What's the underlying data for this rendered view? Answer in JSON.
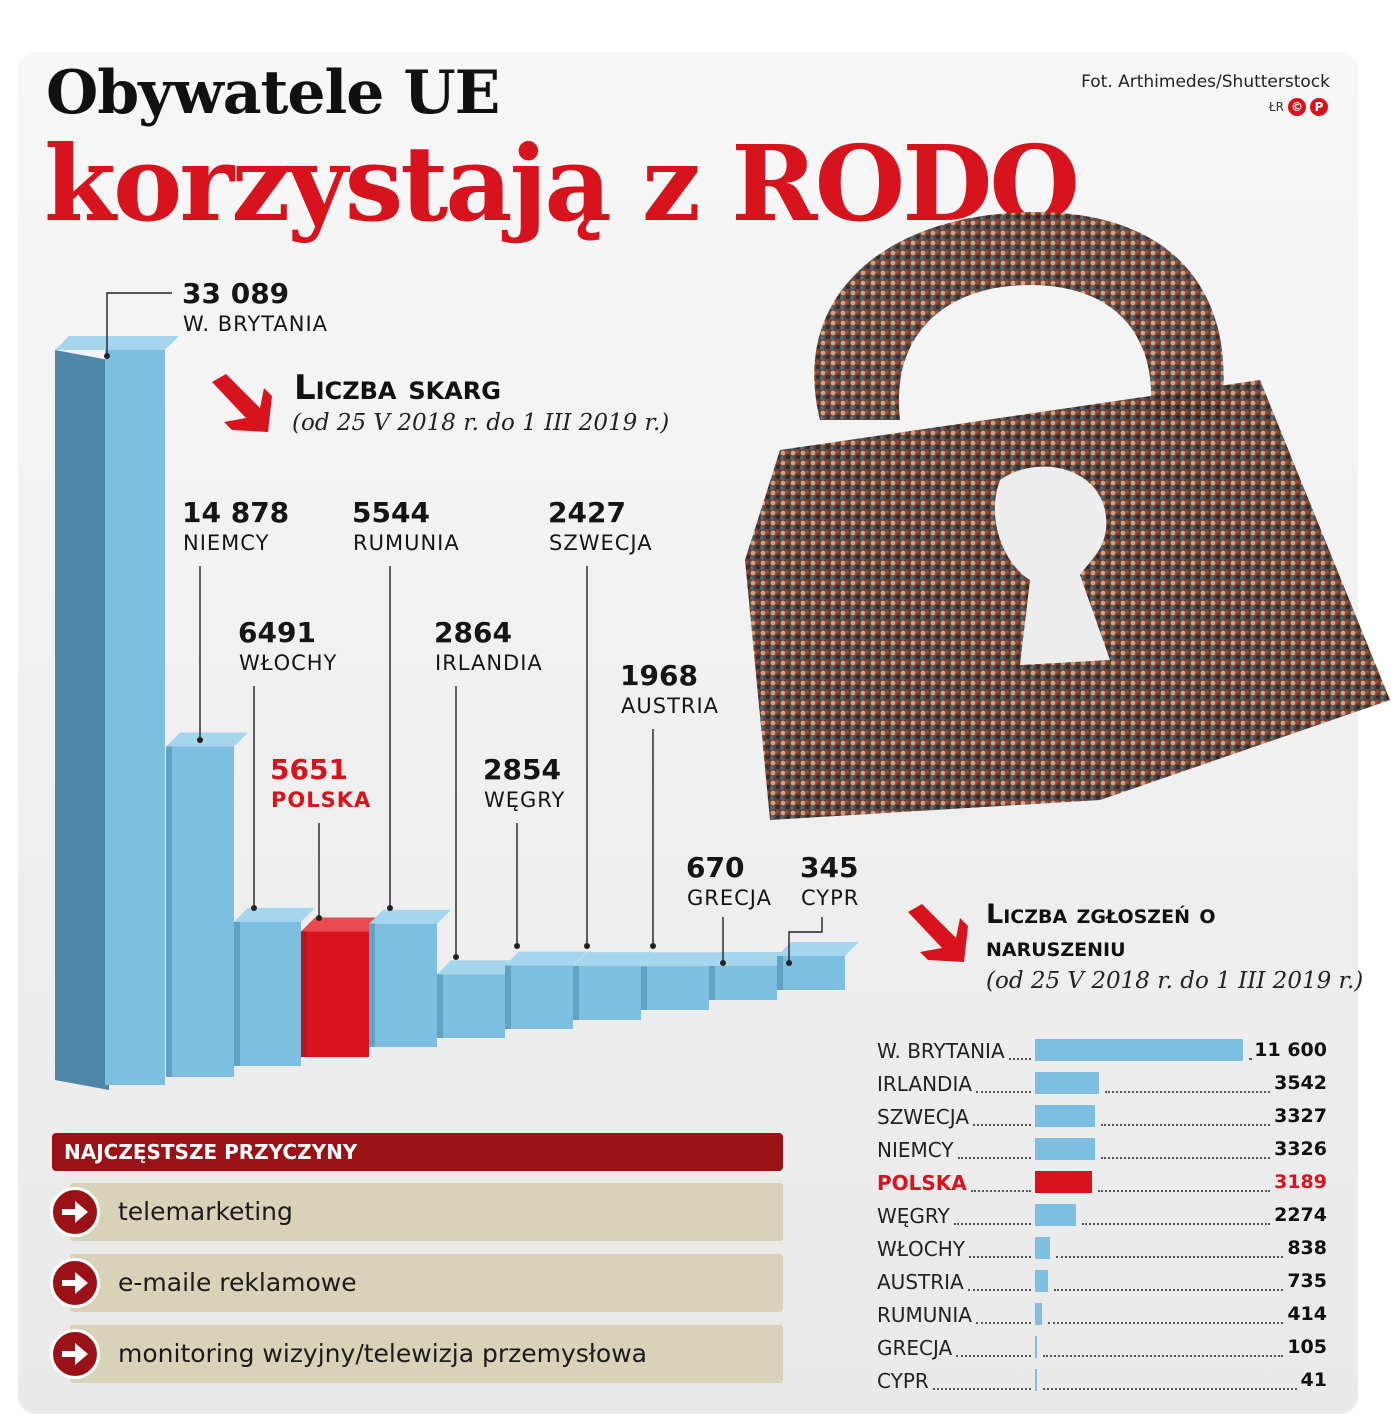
{
  "header": {
    "title_line1": "Obywatele UE",
    "title_line2": "korzystają z RODO",
    "credit": "Fot. Arthimedes/Shutterstock",
    "logo_text": "ŁR",
    "logo_marks": [
      "©",
      "P"
    ]
  },
  "colors": {
    "accent_red": "#d7141d",
    "bar_blue": "#7dbfe0",
    "dark_red": "#9a1218",
    "reason_bg": "#d8d3b8"
  },
  "chart_data": [
    {
      "type": "bar",
      "title": "Liczba skarg",
      "subtitle": "(od 25 V 2018 r. do 1 III 2019 r.)",
      "categories": [
        "W. BRYTANIA",
        "NIEMCY",
        "WŁOCHY",
        "POLSKA",
        "RUMUNIA",
        "IRLANDIA",
        "WĘGRY",
        "SZWECJA",
        "AUSTRIA",
        "GRECJA",
        "CYPR"
      ],
      "values": [
        33089,
        14878,
        6491,
        5651,
        5544,
        2864,
        2854,
        2427,
        1968,
        670,
        345
      ],
      "value_labels": [
        "33 089",
        "14 878",
        "6491",
        "5651",
        "5544",
        "2864",
        "2854",
        "2427",
        "1968",
        "670",
        "345"
      ],
      "highlight": "POLSKA",
      "style": "3d-perspective"
    },
    {
      "type": "bar",
      "orientation": "horizontal",
      "title": "Liczba zgłoszeń o naruszeniu",
      "subtitle": "(od 25 V 2018 r. do 1 III 2019 r.)",
      "categories": [
        "W. BRYTANIA",
        "IRLANDIA",
        "SZWECJA",
        "NIEMCY",
        "POLSKA",
        "WĘGRY",
        "WŁOCHY",
        "AUSTRIA",
        "RUMUNIA",
        "GRECJA",
        "CYPR"
      ],
      "values": [
        11600,
        3542,
        3327,
        3326,
        3189,
        2274,
        838,
        735,
        414,
        105,
        41
      ],
      "value_labels": [
        "11 600",
        "3542",
        "3327",
        "3326",
        "3189",
        "2274",
        "838",
        "735",
        "414",
        "105",
        "41"
      ],
      "highlight": "POLSKA"
    }
  ],
  "reasons": {
    "heading": "NAJCZĘSTSZE PRZYCZYNY",
    "items": [
      "telemarketing",
      "e-maile reklamowe",
      "monitoring wizyjny/telewizja przemysłowa"
    ]
  }
}
